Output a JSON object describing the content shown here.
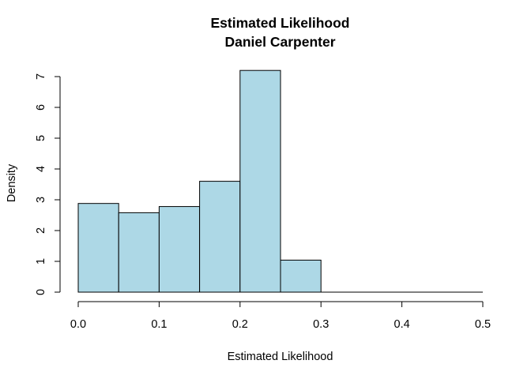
{
  "chart_data": {
    "type": "bar",
    "title": "Estimated Likelihood",
    "subtitle": "Daniel Carpenter",
    "xlabel": "Estimated Likelihood",
    "ylabel": "Density",
    "xlim": [
      0,
      0.5
    ],
    "ylim": [
      0,
      7
    ],
    "bin_edges": [
      0,
      0.05,
      0.1,
      0.15,
      0.2,
      0.25,
      0.3
    ],
    "values": [
      2.88,
      2.58,
      2.78,
      3.6,
      7.2,
      1.04
    ],
    "x_ticks": [
      "0.0",
      "0.1",
      "0.2",
      "0.3",
      "0.4",
      "0.5"
    ],
    "y_ticks": [
      "0",
      "1",
      "2",
      "3",
      "4",
      "5",
      "6",
      "7"
    ],
    "grid": false,
    "colors": {
      "bar_fill": "#add8e6",
      "bar_stroke": "#000000",
      "axis": "#000000"
    }
  }
}
